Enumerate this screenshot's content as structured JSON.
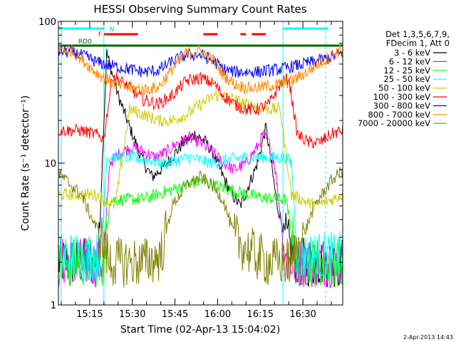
{
  "chart_data": {
    "type": "line",
    "title": "HESSI Observing Summary Count Rates",
    "xlabel": "Start Time (02-Apr-13 15:04:02)",
    "ylabel": "Count Rate (s⁻¹ detector⁻¹)",
    "yscale": "log",
    "ylim": [
      1,
      100
    ],
    "xlim_minutes": [
      0,
      100
    ],
    "x_tick_labels": [
      "15:15",
      "15:30",
      "15:45",
      "16:00",
      "16:15",
      "16:30"
    ],
    "x_tick_minutes": [
      11,
      26,
      41,
      56,
      71,
      86
    ],
    "y_tick_labels": [
      "1",
      "10",
      "100"
    ],
    "y_tick_values": [
      1,
      10,
      100
    ],
    "legend": {
      "header_lines": [
        "Det 1,3,5,6,7,9,",
        "FDecim 1, Att 0"
      ],
      "position": "right"
    },
    "flag_labels": [
      "RD0",
      "N",
      "F"
    ],
    "timestamp": "2-Apr-2013 14:43",
    "series": [
      {
        "name": "3 - 6 keV",
        "color": "#000000",
        "x": [
          0,
          14,
          17,
          21,
          25,
          30,
          33,
          36,
          40,
          44,
          48,
          52,
          55,
          58,
          61,
          64,
          67,
          70,
          73,
          77,
          80,
          84,
          86,
          100
        ],
        "values": [
          2,
          2,
          60,
          30,
          18,
          10,
          8,
          9,
          11,
          14,
          16,
          14,
          11,
          8,
          6,
          5,
          7,
          10,
          18,
          5,
          3,
          2,
          2,
          2
        ]
      },
      {
        "name": "6 - 12 keV",
        "color": "#ff00ff",
        "x": [
          0,
          16,
          18,
          22,
          26,
          30,
          34,
          38,
          42,
          46,
          50,
          54,
          58,
          62,
          66,
          70,
          72,
          74,
          76,
          80,
          84,
          100
        ],
        "values": [
          2,
          2,
          10,
          12,
          13,
          12,
          11,
          12,
          14,
          15,
          14,
          12,
          10,
          9,
          10,
          13,
          16,
          14,
          10,
          2,
          2,
          2
        ]
      },
      {
        "name": "12 - 25 keV",
        "color": "#00ff00",
        "x": [
          0,
          16,
          18,
          30,
          40,
          50,
          60,
          70,
          80,
          84,
          100
        ],
        "values": [
          2,
          2,
          5.5,
          5.6,
          6.5,
          7.5,
          6.5,
          5.8,
          5.5,
          2,
          2
        ]
      },
      {
        "name": "25 - 50 keV",
        "color": "#00ffff",
        "x": [
          0,
          15,
          17,
          25,
          32,
          38,
          42,
          46,
          50,
          54,
          58,
          66,
          74,
          80,
          82,
          84,
          100
        ],
        "values": [
          2.2,
          2.2,
          11,
          11,
          10.5,
          10,
          10.5,
          11,
          10.5,
          10,
          10.5,
          11,
          11,
          11,
          10,
          2.2,
          2.2
        ]
      },
      {
        "name": "50 - 100 keV",
        "color": "#cccc00",
        "x": [
          0,
          13,
          16,
          20,
          25,
          30,
          35,
          40,
          45,
          50,
          55,
          58,
          62,
          66,
          70,
          75,
          78,
          82,
          86,
          90,
          96,
          100
        ],
        "values": [
          6,
          6,
          5.5,
          5,
          24,
          22,
          20,
          20,
          22,
          26,
          30,
          30,
          28,
          26,
          25,
          24,
          24,
          6,
          5.5,
          5,
          5.5,
          6
        ]
      },
      {
        "name": "100 - 300 keV",
        "color": "#ff0000",
        "x": [
          0,
          8,
          13,
          16,
          19,
          22,
          25,
          30,
          35,
          40,
          45,
          50,
          55,
          58,
          62,
          66,
          70,
          74,
          78,
          81,
          84,
          88,
          92,
          96,
          100
        ],
        "values": [
          17,
          17,
          16,
          15,
          42,
          38,
          34,
          28,
          26,
          30,
          38,
          40,
          36,
          30,
          26,
          24,
          24,
          26,
          36,
          40,
          16,
          14,
          14,
          16,
          17
        ]
      },
      {
        "name": "300 - 800 keV",
        "color": "#0000ff",
        "x": [
          0,
          5,
          10,
          13,
          16,
          20,
          25,
          30,
          35,
          40,
          45,
          50,
          55,
          58,
          62,
          66,
          70,
          74,
          78,
          82,
          86,
          90,
          95,
          100
        ],
        "values": [
          62,
          60,
          56,
          52,
          50,
          48,
          46,
          44,
          45,
          52,
          58,
          58,
          52,
          46,
          44,
          44,
          44,
          45,
          46,
          48,
          50,
          52,
          55,
          60
        ]
      },
      {
        "name": "800 - 7000 keV",
        "color": "#ff8800",
        "x": [
          0,
          5,
          10,
          13,
          16,
          20,
          25,
          30,
          35,
          40,
          45,
          50,
          55,
          58,
          62,
          66,
          70,
          74,
          78,
          82,
          86,
          90,
          95,
          100
        ],
        "values": [
          65,
          62,
          50,
          44,
          40,
          36,
          34,
          33,
          34,
          46,
          60,
          62,
          52,
          42,
          36,
          34,
          34,
          35,
          36,
          38,
          42,
          48,
          55,
          65
        ]
      },
      {
        "name": "7000 - 20000 keV",
        "color": "#808000",
        "x": [
          0,
          8,
          12,
          15,
          18,
          25,
          30,
          36,
          40,
          45,
          50,
          54,
          58,
          62,
          66,
          70,
          74,
          78,
          82,
          86,
          90,
          96,
          100
        ],
        "values": [
          8.5,
          6,
          4,
          3,
          2,
          2,
          2,
          2.2,
          5,
          7,
          8,
          7,
          5.5,
          3,
          2.5,
          2.2,
          2,
          2,
          2,
          3,
          5,
          7.5,
          9
        ]
      }
    ]
  }
}
